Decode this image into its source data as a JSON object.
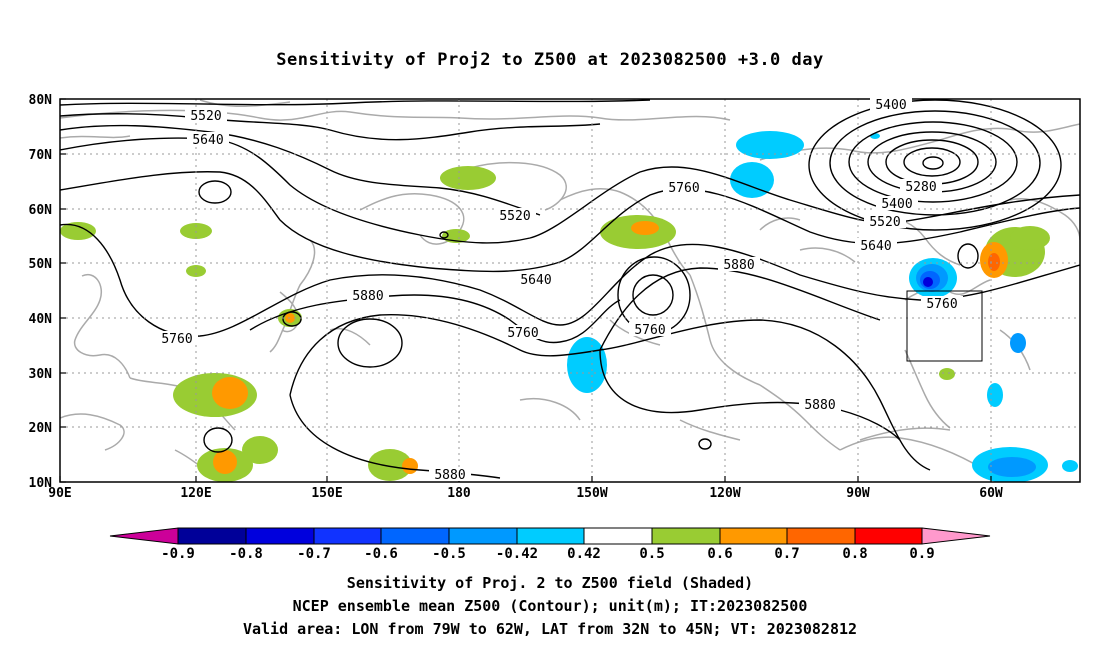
{
  "title": "Sensitivity of Proj2 to Z500 at 2023082500 +3.0 day",
  "map": {
    "lat_labels": [
      "80N",
      "70N",
      "60N",
      "50N",
      "40N",
      "30N",
      "20N",
      "10N"
    ],
    "lon_labels": [
      "90E",
      "120E",
      "150E",
      "180",
      "150W",
      "120W",
      "90W",
      "60W"
    ],
    "contour_labels": [
      {
        "text": "5400"
      },
      {
        "text": "5520"
      },
      {
        "text": "5640"
      },
      {
        "text": "5760"
      },
      {
        "text": "5520"
      },
      {
        "text": "5280"
      },
      {
        "text": "5400"
      },
      {
        "text": "5520"
      },
      {
        "text": "5640"
      },
      {
        "text": "5640"
      },
      {
        "text": "5880"
      },
      {
        "text": "5760"
      },
      {
        "text": "5760"
      },
      {
        "text": "5880"
      },
      {
        "text": "5760"
      },
      {
        "text": "5760"
      },
      {
        "text": "5880"
      },
      {
        "text": "5880"
      }
    ],
    "colors": {
      "land": "#aaaaaa",
      "contour": "#000000",
      "green": "#99cc33",
      "orange": "#ff9900",
      "cyan": "#00ccff",
      "blue": "#0066ff"
    }
  },
  "colorbar": {
    "labels": [
      "-0.9",
      "-0.8",
      "-0.7",
      "-0.6",
      "-0.5",
      "-0.42",
      "0.42",
      "0.5",
      "0.6",
      "0.7",
      "0.8",
      "0.9"
    ],
    "colors": [
      "#000099",
      "#0000dd",
      "#1133ff",
      "#0066ff",
      "#0099ff",
      "#00ccff",
      "#ffffff",
      "#99cc33",
      "#ff9900",
      "#ff6600",
      "#ff3300",
      "#ff0000"
    ],
    "left_end": "#cc0099",
    "right_end": "#ff99cc"
  },
  "captions": [
    "Sensitivity of Proj. 2 to Z500 field (Shaded)",
    "NCEP ensemble mean Z500 (Contour); unit(m); IT:2023082500",
    "Valid area: LON from 79W to 62W, LAT from 32N to 45N; VT: 2023082812"
  ]
}
